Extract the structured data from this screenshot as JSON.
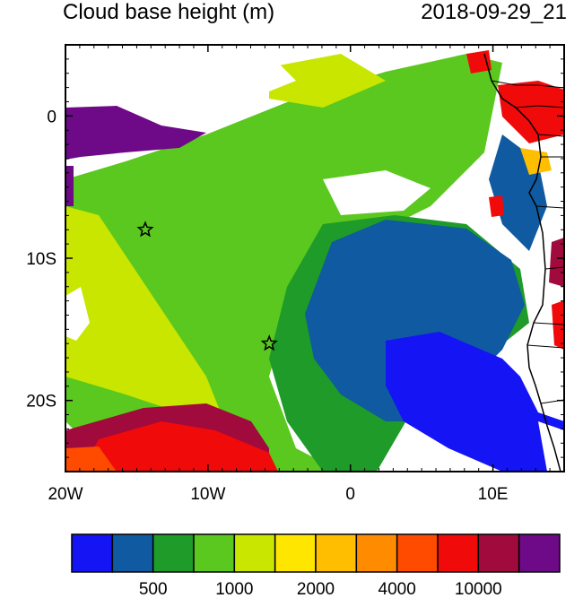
{
  "title": "Cloud base height (m)",
  "timestamp": "2018-09-29_21",
  "axes": {
    "lon_ticks": [
      {
        "label": "20W",
        "value": -20
      },
      {
        "label": "10W",
        "value": -10
      },
      {
        "label": "0",
        "value": 0
      },
      {
        "label": "10E",
        "value": 10
      }
    ],
    "lat_ticks": [
      {
        "label": "0",
        "value": 0
      },
      {
        "label": "10S",
        "value": -10
      },
      {
        "label": "20S",
        "value": -20
      }
    ]
  },
  "map": {
    "lon_range": [
      -20,
      15
    ],
    "lat_range": [
      -25,
      5
    ],
    "stations": [
      {
        "lon": -14.4,
        "lat": -8.0
      },
      {
        "lon": -5.7,
        "lat": -16.0
      }
    ]
  },
  "colorbar": {
    "colors": [
      "#1414f5",
      "#0f5aa0",
      "#1e9b28",
      "#5ac81e",
      "#c8e600",
      "#ffe600",
      "#ffbe00",
      "#ff8c00",
      "#ff4b00",
      "#f00a0a",
      "#a00a3c",
      "#6e0a87"
    ],
    "labels": [
      {
        "text": "500",
        "index": 2
      },
      {
        "text": "1000",
        "index": 4
      },
      {
        "text": "2000",
        "index": 6
      },
      {
        "text": "4000",
        "index": 8
      },
      {
        "text": "10000",
        "index": 10
      }
    ]
  }
}
